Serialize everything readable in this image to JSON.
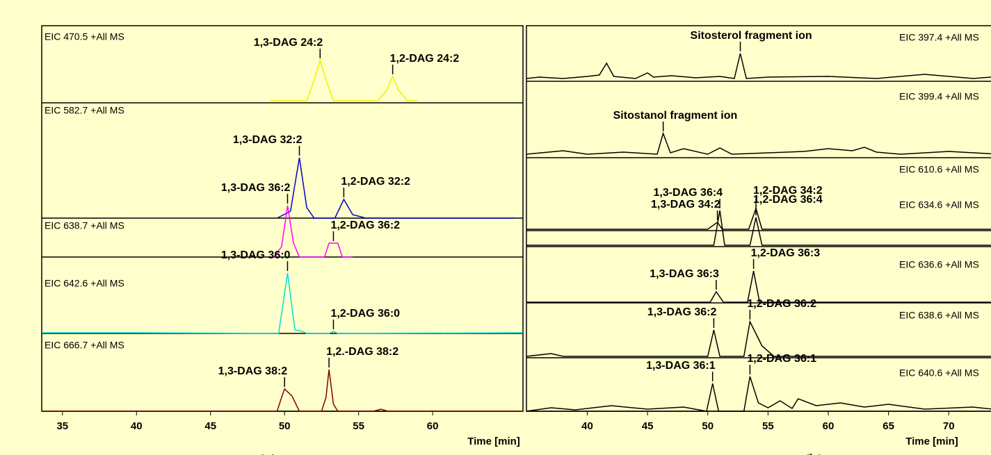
{
  "chart_data": [
    {
      "type": "line",
      "xlabel": "Time [min]",
      "panel_label": "(a)",
      "xlim": [
        33.6,
        66.1
      ],
      "xticks": [
        35,
        40,
        45,
        50,
        55,
        60
      ],
      "series": [
        {
          "name": "EIC 470.5 +All MS",
          "color": "#f0f000",
          "x": [
            49,
            51.5,
            52,
            52.4,
            52.8,
            53.3,
            56.3,
            56.9,
            57.3,
            57.7,
            58.3,
            59
          ],
          "values": [
            0,
            0,
            30,
            58,
            30,
            0,
            0,
            15,
            35,
            15,
            0,
            0
          ],
          "annotations": [
            {
              "text": "1,3-DAG 24:2",
              "x": 52.4
            },
            {
              "text": "1,2-DAG 24:2",
              "x": 57.3
            }
          ]
        },
        {
          "name": "EIC 582.7 +All MS",
          "color": "#0000cc",
          "x": [
            49.5,
            50.4,
            51.0,
            51.5,
            52,
            53.4,
            54.0,
            54.6,
            55.5,
            65.5
          ],
          "values": [
            0,
            10,
            87,
            15,
            0,
            0,
            27,
            5,
            0,
            0
          ],
          "annotations": [
            {
              "text": "1,3-DAG 32:2",
              "x": 51.0
            },
            {
              "text": "1,2-DAG 32:2",
              "x": 54.0
            }
          ]
        },
        {
          "name": "EIC 638.7 +All MS",
          "color": "#ff00ff",
          "x": [
            49.3,
            49.8,
            50.2,
            50.6,
            51.0,
            52.7,
            53.0,
            53.6,
            53.9,
            54.6
          ],
          "values": [
            0,
            15,
            74,
            20,
            0,
            0,
            20,
            20,
            0,
            0
          ],
          "annotations": [
            {
              "text": "1,3-DAG 36:2",
              "x": 50.2
            },
            {
              "text": "1,2-DAG 36:2",
              "x": 53.3
            }
          ]
        },
        {
          "name": "EIC 642.6 +All MS",
          "color": "#00dddd",
          "x": [
            33.6,
            40,
            49.6,
            50.2,
            50.7,
            51.2,
            51.5,
            53.0,
            53.3,
            53.6,
            66.1
          ],
          "values": [
            1,
            1,
            0,
            87,
            5,
            3,
            0,
            0,
            3,
            0,
            1
          ],
          "annotations": [
            {
              "text": "1,3-DAG 36:0",
              "x": 50.2
            },
            {
              "text": "1,2-DAG 36:0",
              "x": 53.3
            }
          ]
        },
        {
          "name": "EIC 666.7 +All MS",
          "color": "#800000",
          "x": [
            33.6,
            49.5,
            49.8,
            50.0,
            50.5,
            51.0,
            52.5,
            52.8,
            53.0,
            53.3,
            53.6,
            56,
            56.5,
            57,
            66.1
          ],
          "values": [
            0,
            0,
            20,
            32,
            22,
            0,
            0,
            20,
            60,
            10,
            0,
            0,
            3,
            0,
            0
          ],
          "annotations": [
            {
              "text": "1,3-DAG 38:2",
              "x": 50.0
            },
            {
              "text": "1,2.-DAG 38:2",
              "x": 53.0
            }
          ]
        }
      ]
    },
    {
      "type": "line",
      "xlabel": "Time [min]",
      "panel_label": "(b)",
      "xlim": [
        34.95,
        74.2
      ],
      "xticks": [
        40,
        45,
        50,
        55,
        60,
        65,
        70
      ],
      "series": [
        {
          "name": "EIC 397.4 +All MS",
          "color": "#000000",
          "x": [
            34.95,
            36,
            38,
            40,
            41,
            41.6,
            42.2,
            44,
            45,
            45.5,
            47,
            49,
            51,
            52.2,
            52.7,
            53.2,
            55,
            60,
            64,
            68,
            72,
            74.2
          ],
          "values": [
            0,
            2,
            0,
            3,
            5,
            22,
            3,
            0,
            8,
            2,
            4,
            1,
            3,
            0,
            36,
            0,
            2,
            3,
            0,
            6,
            0,
            3
          ],
          "annotations": [
            {
              "text": "Sitosterol fragment ion",
              "x": 52.7
            }
          ]
        },
        {
          "name": "EIC 399.4 +All MS",
          "color": "#000000",
          "x": [
            34.95,
            38,
            40,
            43,
            45.8,
            46.3,
            46.9,
            48,
            50,
            51,
            52,
            55,
            58,
            60,
            62,
            63,
            64,
            66,
            70,
            74.2
          ],
          "values": [
            0,
            5,
            0,
            3,
            0,
            30,
            2,
            8,
            0,
            9,
            0,
            2,
            4,
            8,
            5,
            10,
            3,
            0,
            4,
            0
          ],
          "annotations": [
            {
              "text": "Sitostanol fragment ion",
              "x": 46.3
            }
          ]
        },
        {
          "name": "EIC 610.6 +All MS",
          "color": "#000000",
          "x": [
            34.95,
            50,
            50.8,
            51.2,
            53.4,
            54.0,
            54.5,
            57,
            74.2
          ],
          "values": [
            0,
            0,
            10,
            0,
            0,
            30,
            0,
            0,
            0
          ],
          "annotations": [
            {
              "text": "1,3-DAG 34:2",
              "x": 50.8
            },
            {
              "text": "1,2-DAG 34:2",
              "x": 54.0
            }
          ]
        },
        {
          "name": "EIC 634.6 +All MS",
          "color": "#000000",
          "x": [
            34.95,
            50.5,
            51.0,
            51.4,
            53.5,
            54.0,
            54.5,
            74.2
          ],
          "values": [
            0,
            0,
            50,
            0,
            0,
            40,
            0,
            0
          ],
          "annotations": [
            {
              "text": "1,3-DAG 36:4",
              "x": 51.0
            },
            {
              "text": "1,2-DAG 36:4",
              "x": 54.0
            }
          ]
        },
        {
          "name": "EIC 636.6 +All MS",
          "color": "#000000",
          "x": [
            34.95,
            50.2,
            50.7,
            51.3,
            53.3,
            53.8,
            54.3,
            74.2
          ],
          "values": [
            0,
            0,
            15,
            0,
            0,
            45,
            0,
            0
          ],
          "annotations": [
            {
              "text": "1,3-DAG 36:3",
              "x": 50.7
            },
            {
              "text": "1,2-DAG 36:3",
              "x": 53.8
            }
          ]
        },
        {
          "name": "EIC 638.6 +All MS",
          "color": "#000000",
          "x": [
            34.95,
            37,
            38,
            50,
            50.5,
            51.0,
            53.0,
            53.5,
            54.5,
            55.5,
            74.2
          ],
          "values": [
            0,
            4,
            0,
            0,
            38,
            0,
            0,
            50,
            15,
            0,
            0
          ],
          "annotations": [
            {
              "text": "1,3-DAG 36:2",
              "x": 50.5
            },
            {
              "text": "1,2-DAG 36:2",
              "x": 53.5
            }
          ]
        },
        {
          "name": "EIC 640.6 +All MS",
          "color": "#000000",
          "x": [
            34.95,
            37,
            39,
            42,
            45,
            48,
            49.9,
            50.4,
            50.9,
            53.0,
            53.5,
            54.2,
            55,
            56,
            57,
            57.5,
            59,
            61,
            63,
            65,
            68,
            72,
            74.2
          ],
          "values": [
            0,
            5,
            2,
            8,
            3,
            6,
            0,
            40,
            0,
            0,
            50,
            12,
            5,
            15,
            4,
            18,
            8,
            12,
            6,
            10,
            3,
            6,
            2
          ],
          "annotations": [
            {
              "text": "1,3-DAG 36:1",
              "x": 50.4
            },
            {
              "text": "1,2-DAG 36:1",
              "x": 53.5
            }
          ]
        }
      ]
    }
  ]
}
